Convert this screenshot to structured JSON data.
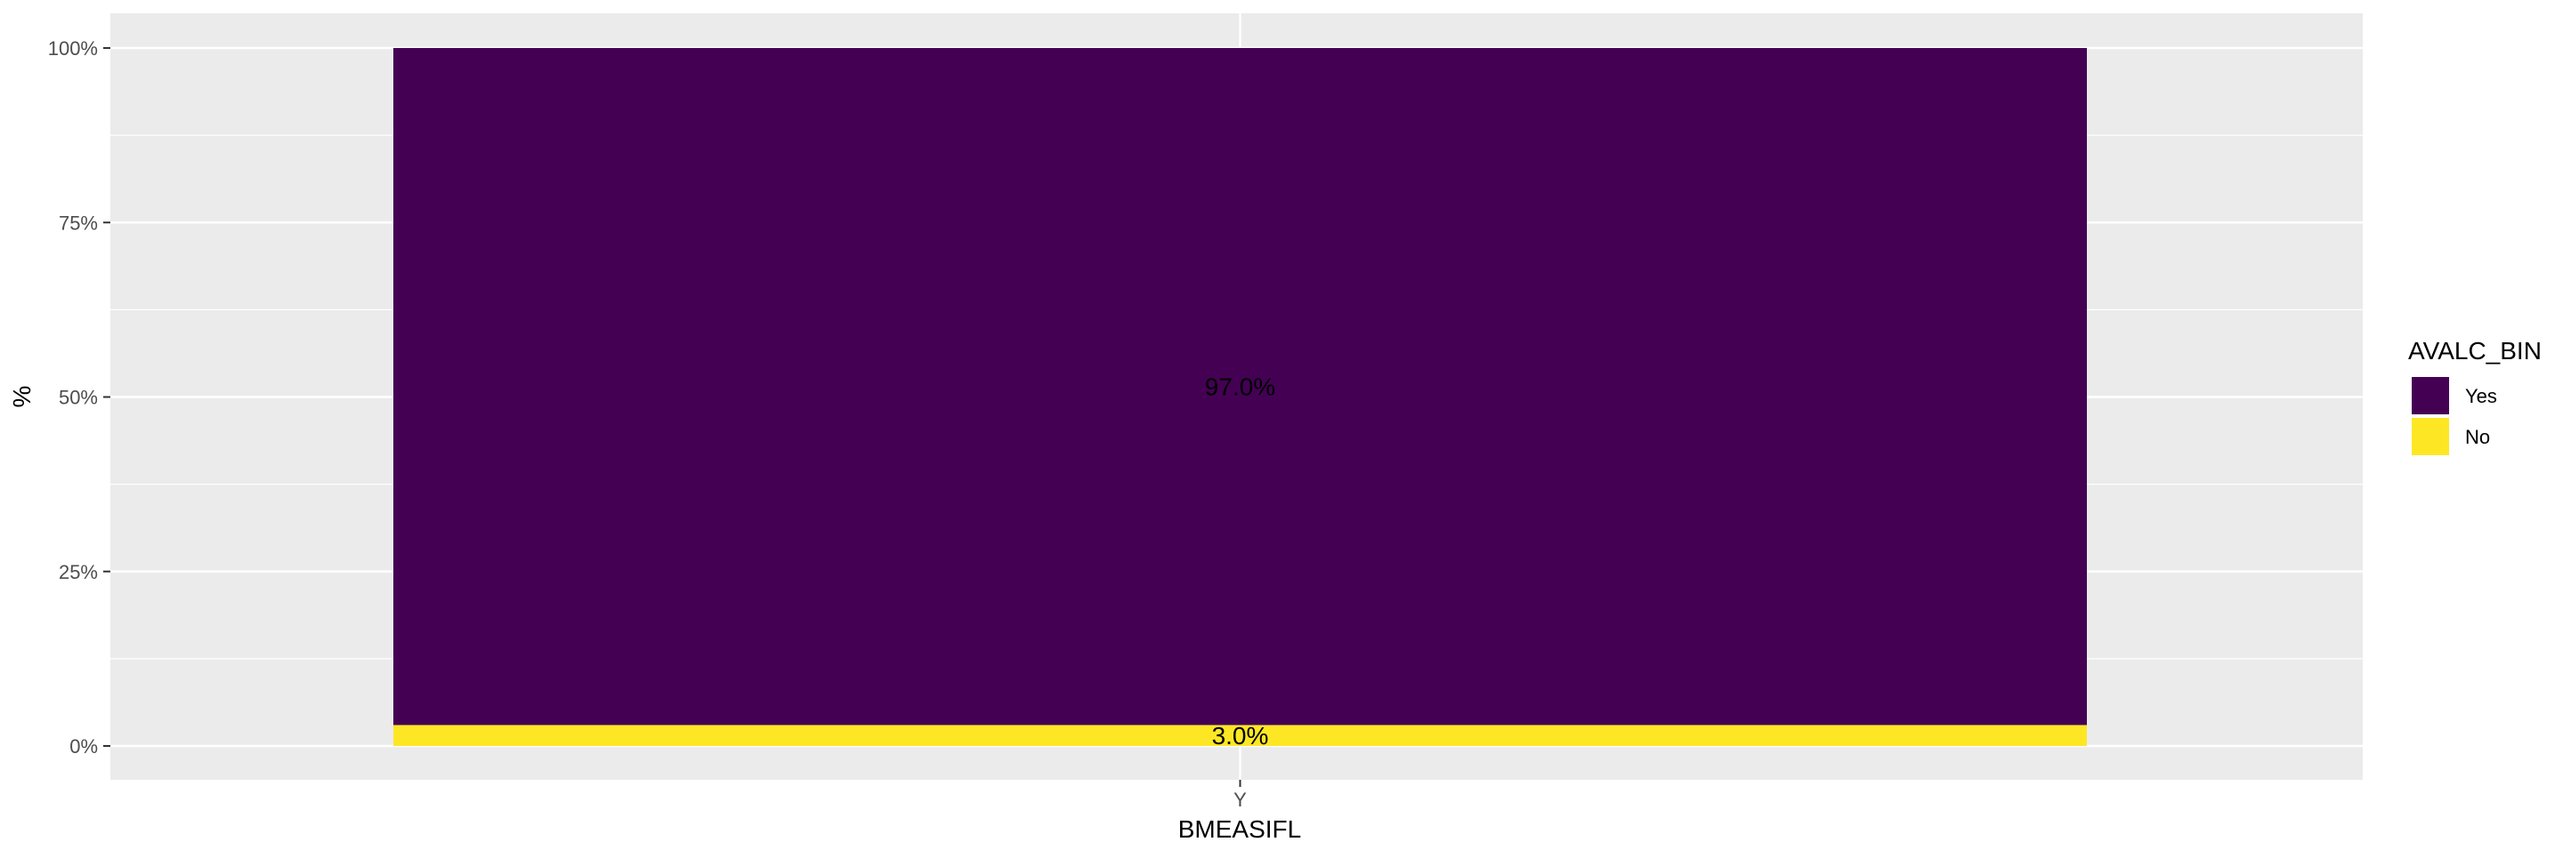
{
  "chart_data": {
    "type": "bar",
    "stacked": true,
    "categories": [
      "Y"
    ],
    "series": [
      {
        "name": "Yes",
        "values": [
          97.0
        ],
        "label": "97.0%",
        "color": "#440154"
      },
      {
        "name": "No",
        "values": [
          3.0
        ],
        "label": "3.0%",
        "color": "#FDE725"
      }
    ],
    "xlabel": "BMEASIFL",
    "ylabel": "%",
    "ylim": [
      0,
      100
    ],
    "yticks": [
      0,
      25,
      50,
      75,
      100
    ],
    "ytick_labels": [
      "0%",
      "25%",
      "50%",
      "75%",
      "100%"
    ],
    "legend": {
      "title": "AVALC_BIN",
      "position": "right"
    },
    "grid": true,
    "panel_background": "#EBEBEB"
  }
}
